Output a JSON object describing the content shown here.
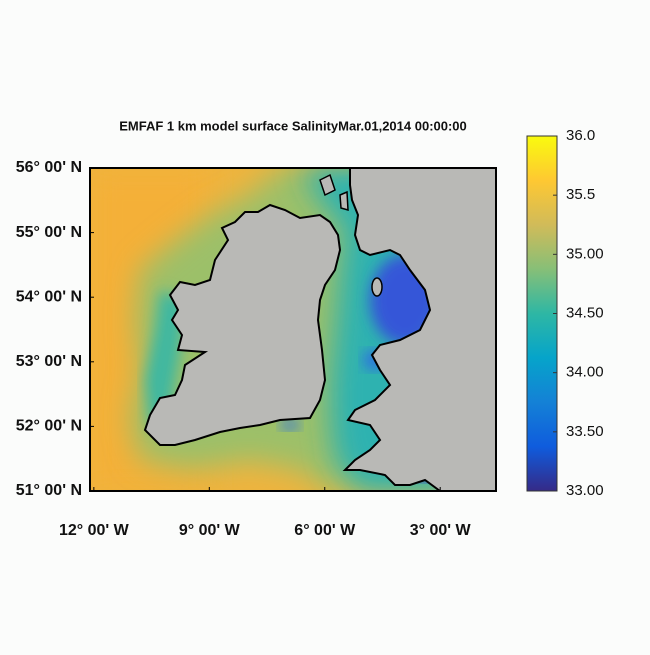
{
  "title": "EMFAF 1 km model surface SalinityMar.01,2014 00:00:00",
  "map": {
    "lon_lim": [
      -12.1,
      -1.55
    ],
    "lat_lim": [
      51,
      56
    ],
    "lat_ticks": [
      {
        "value": 56,
        "label": "56° 00' N"
      },
      {
        "value": 55,
        "label": "55° 00' N"
      },
      {
        "value": 54,
        "label": "54° 00' N"
      },
      {
        "value": 53,
        "label": "53° 00' N"
      },
      {
        "value": 52,
        "label": "52° 00' N"
      },
      {
        "value": 51,
        "label": "51° 00' N"
      }
    ],
    "lon_ticks": [
      {
        "value": -12,
        "label": "12° 00' W"
      },
      {
        "value": -9,
        "label": "9° 00' W"
      },
      {
        "value": -6,
        "label": "6° 00' W"
      },
      {
        "value": -3,
        "label": "3° 00' W"
      }
    ]
  },
  "colorbar": {
    "lim": [
      33,
      36
    ],
    "ticks": [
      {
        "value": 33,
        "label": "33.00"
      },
      {
        "value": 33.5,
        "label": "33.50"
      },
      {
        "value": 34,
        "label": "34.00"
      },
      {
        "value": 34.5,
        "label": "34.50"
      },
      {
        "value": 35,
        "label": "35.00"
      },
      35.5,
      {
        "value": 36,
        "label": "36.0"
      }
    ],
    "colormap": [
      "#352a87",
      "#0f5cdd",
      "#1481d6",
      "#06a4ca",
      "#2eb7a4",
      "#87bf77",
      "#d1bb59",
      "#fec832",
      "#f9fb0e"
    ]
  }
}
